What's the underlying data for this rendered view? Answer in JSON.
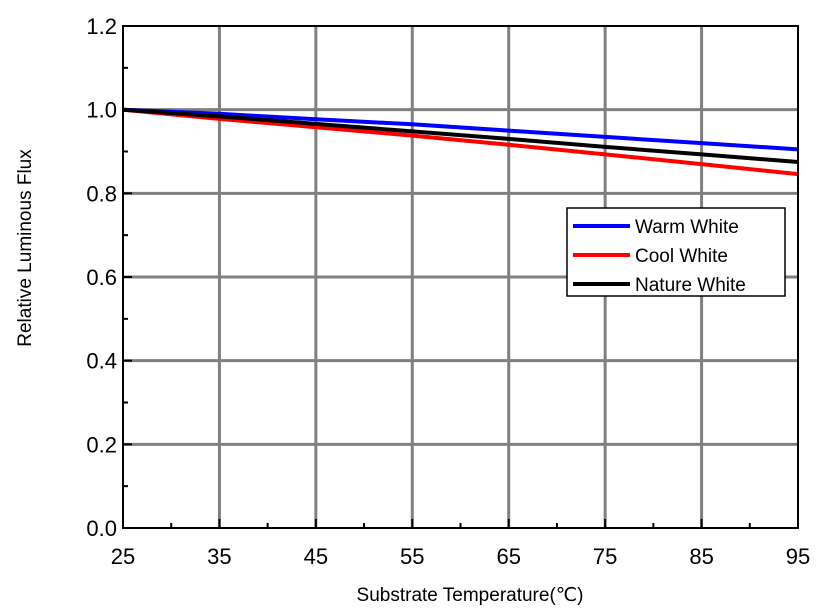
{
  "chart_data": {
    "type": "line",
    "x_tick_labels": [
      "25",
      "35",
      "45",
      "55",
      "65",
      "75",
      "85",
      "95"
    ],
    "y_tick_labels": [
      "0.0",
      "0.2",
      "0.4",
      "0.6",
      "0.8",
      "1.0",
      "1.2"
    ],
    "xlabel": "Substrate Temperature(℃)",
    "ylabel": "Relative Luminous Flux",
    "xlim": [
      25,
      95
    ],
    "ylim": [
      0.0,
      1.2
    ],
    "x_ticks": [
      25,
      35,
      45,
      55,
      65,
      75,
      85,
      95
    ],
    "y_ticks": [
      0.0,
      0.2,
      0.4,
      0.6,
      0.8,
      1.0,
      1.2
    ],
    "grid": true,
    "legend_position": "right, middle-upper",
    "series": [
      {
        "name": "Warm White",
        "color": "#0000ff",
        "x": [
          25,
          35,
          45,
          55,
          65,
          75,
          85,
          95
        ],
        "y": [
          1.0,
          0.99,
          0.977,
          0.965,
          0.95,
          0.935,
          0.92,
          0.905
        ]
      },
      {
        "name": "Cool White",
        "color": "#ff0000",
        "x": [
          25,
          35,
          45,
          55,
          65,
          75,
          85,
          95
        ],
        "y": [
          1.0,
          0.978,
          0.958,
          0.938,
          0.916,
          0.893,
          0.87,
          0.846
        ]
      },
      {
        "name": "Nature White",
        "color": "#000000",
        "x": [
          25,
          35,
          45,
          55,
          65,
          75,
          85,
          95
        ],
        "y": [
          1.0,
          0.984,
          0.966,
          0.948,
          0.93,
          0.911,
          0.893,
          0.875
        ]
      }
    ]
  }
}
